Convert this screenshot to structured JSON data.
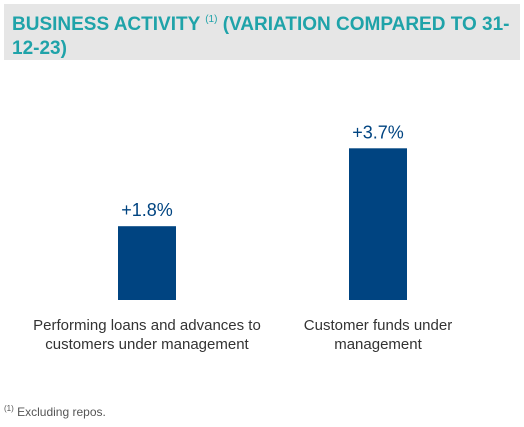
{
  "header": {
    "title_part1": "BUSINESS ACTIVITY",
    "title_note": "(1)",
    "title_part2": "(VARIATION COMPARED TO 31-12-23)"
  },
  "chart_data": {
    "type": "bar",
    "categories": [
      "Performing loans and advances to customers under management",
      "Customer funds under management"
    ],
    "values": [
      1.8,
      3.7
    ],
    "value_labels": [
      "+1.8%",
      "+3.7%"
    ],
    "unit": "%",
    "bar_color": "#004481",
    "grid": false,
    "title": "",
    "xlabel": "",
    "ylabel": ""
  },
  "footnote": {
    "marker": "(1)",
    "text": "Excluding repos."
  },
  "colors": {
    "header_bg": "#e6e6e6",
    "title_text": "#1fa3a9",
    "bar": "#004481",
    "value_label": "#004481"
  }
}
